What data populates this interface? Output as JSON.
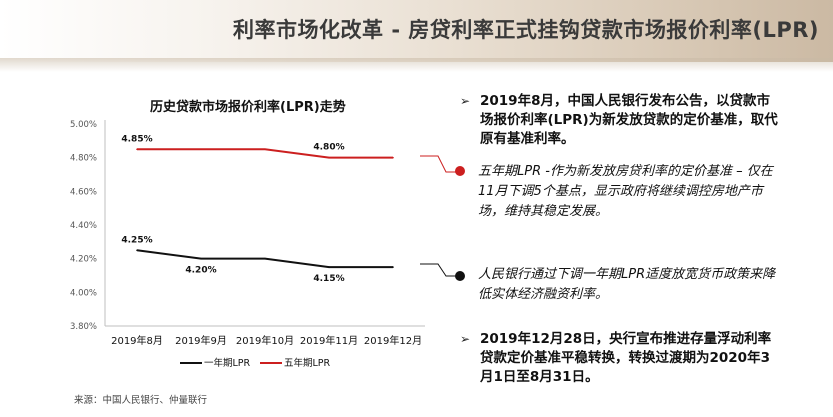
{
  "header": {
    "title": "利率市场化改革 - 房贷利率正式挂钩贷款市场报价利率(LPR)"
  },
  "chart_data": {
    "type": "line",
    "title": "历史贷款市场报价利率(LPR)走势",
    "categories": [
      "2019年8月",
      "2019年9月",
      "2019年10月",
      "2019年11月",
      "2019年12月"
    ],
    "ylim": [
      3.8,
      5.0
    ],
    "yticks": [
      "5.00%",
      "4.80%",
      "4.60%",
      "4.40%",
      "4.20%",
      "4.00%",
      "3.80%"
    ],
    "ytick_values": [
      5.0,
      4.8,
      4.6,
      4.4,
      4.2,
      4.0,
      3.8
    ],
    "grid": false,
    "legend_position": "bottom",
    "series": [
      {
        "name": "一年期LPR",
        "values": [
          4.25,
          4.2,
          4.2,
          4.15,
          4.15
        ],
        "color": "#111111",
        "data_labels": [
          {
            "index": 0,
            "text": "4.25%"
          },
          {
            "index": 1,
            "text": "4.20%"
          },
          {
            "index": 3,
            "text": "4.15%"
          }
        ]
      },
      {
        "name": "五年期LPR",
        "values": [
          4.85,
          4.85,
          4.85,
          4.8,
          4.8
        ],
        "color": "#cc1f1f",
        "data_labels": [
          {
            "index": 0,
            "text": "4.85%"
          },
          {
            "index": 3,
            "text": "4.80%"
          }
        ]
      }
    ]
  },
  "source": "来源：中国人民银行、仲量联行",
  "bullets": {
    "arrow": "➢",
    "item1": "2019年8月，中国人民银行发布公告，以贷款市场报价利率(LPR)为新发放贷款的定价基准，取代原有基准利率。",
    "note_five_year": "五年期LPR -作为新发放房贷利率的定价基准 – 仅在11月下调5个基点，显示政府将继续调控房地产市场，维持其稳定发展。",
    "note_one_year": "人民银行通过下调一年期LPR适度放宽货币政策来降低实体经济融资利率。",
    "item4": "2019年12月28日，央行宣布推进存量浮动利率贷款定价基准平稳转换，转换过渡期为2020年3月1日至8月31日。"
  },
  "colors": {
    "red": "#cc1f1f",
    "black": "#111111",
    "axis": "#bfbfbf"
  }
}
